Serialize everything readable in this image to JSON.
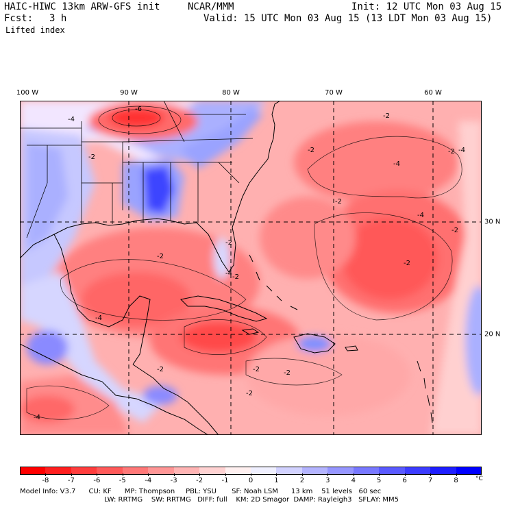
{
  "header": {
    "model_title": "HAIC-HIWC 13km ARW-GFS init",
    "org": "NCAR/MMM",
    "init": "Init: 12 UTC Mon 03 Aug 15",
    "fcst_label": "Fcst:",
    "fcst_value": "3 h",
    "valid": "Valid: 15 UTC Mon 03 Aug 15 (13 LDT Mon 03 Aug 15)",
    "field": "Lifted index"
  },
  "map": {
    "lon_labels": [
      "100 W",
      "90 W",
      "80 W",
      "70 W",
      "60 W"
    ],
    "lat_labels": [
      "30 N",
      "20 N"
    ],
    "contour_labels": [
      "-6",
      "-4",
      "-2",
      "-2",
      "-4",
      "-2",
      "-2",
      "-2",
      "-2",
      "-4",
      "-4",
      "-2",
      "-2",
      "-4",
      "-2",
      "-2",
      "-2",
      "-2",
      "-4",
      "-2",
      "-2",
      "-2",
      "-4"
    ]
  },
  "colorbar": {
    "labels": [
      "-8",
      "-7",
      "-6",
      "-5",
      "-4",
      "-3",
      "-2",
      "-1",
      "0",
      "1",
      "2",
      "3",
      "4",
      "5",
      "6",
      "7",
      "8"
    ],
    "unit": "°C",
    "colors": [
      "#ff0000",
      "#ff1f1f",
      "#ff3d3d",
      "#ff5a5a",
      "#ff7878",
      "#ff9696",
      "#ffb4b4",
      "#ffd2d2",
      "#fff0f0",
      "#f0f0ff",
      "#d2d2ff",
      "#b4b4ff",
      "#9696ff",
      "#7878ff",
      "#5a5aff",
      "#3c3cff",
      "#1e1eff",
      "#0000ff"
    ]
  },
  "model_info": {
    "line1": "Model Info: V3.7      CU: KF      MP: Thompson     PBL: YSU       SF: Noah LSM      13 km    51 levels   60 sec",
    "line2": "LW: RRTMG    SW: RRTMG   DIFF: full    KM: 2D Smagor  DAMP: Rayleigh3   SFLAY: MM5"
  }
}
